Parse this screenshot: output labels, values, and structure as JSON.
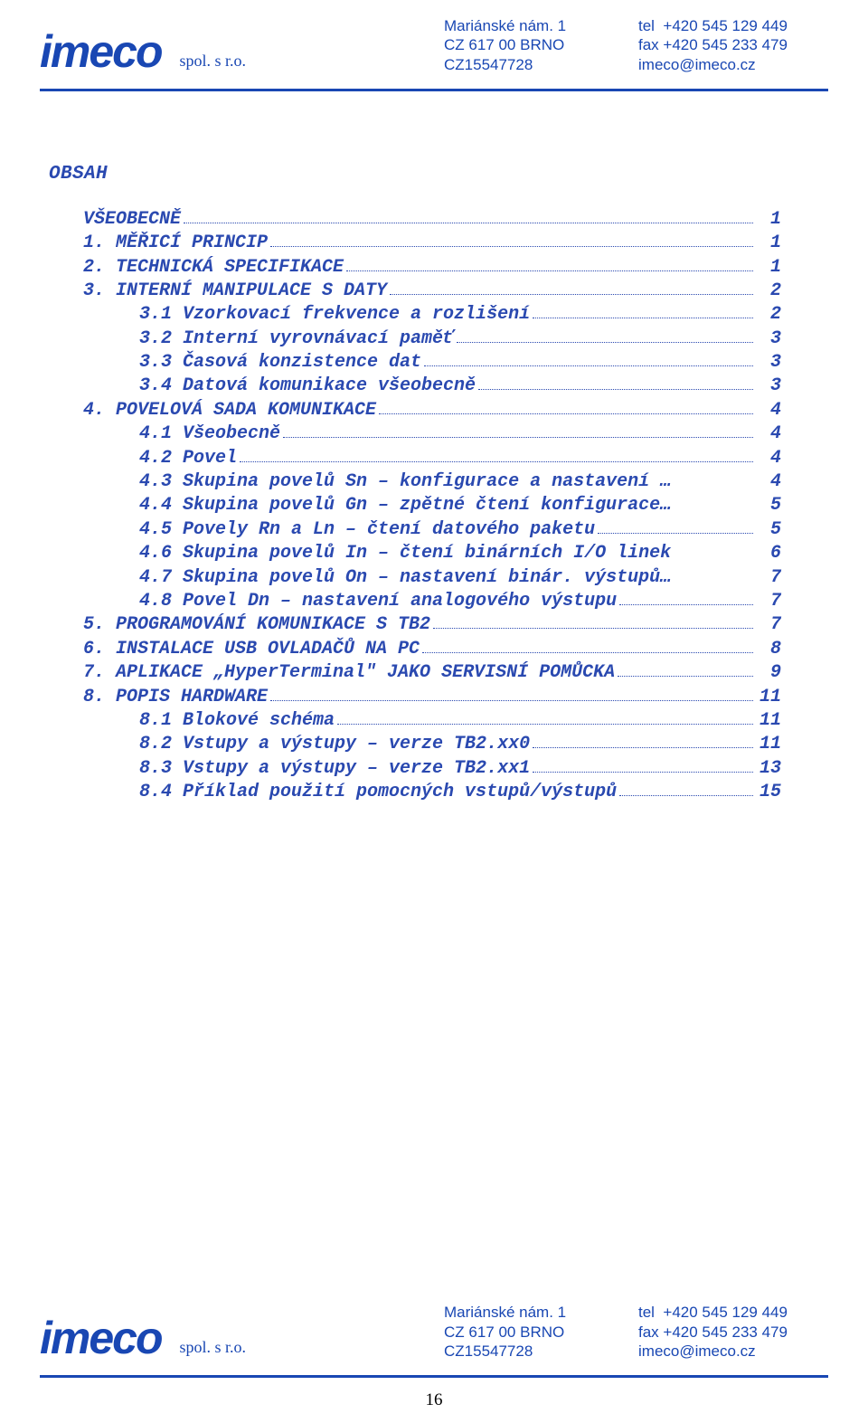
{
  "colors": {
    "brand_blue": "#1947b3",
    "toc_blue": "#2a49b0",
    "rule": "#1947b3",
    "page_bg": "#ffffff"
  },
  "typography": {
    "mono_family": "Courier New",
    "toc_fontsize_pt": 15,
    "toc_weight": "bold",
    "toc_style": "italic",
    "header_family": "Arial",
    "header_fontsize_pt": 13
  },
  "letterhead": {
    "logo_text": "imeco",
    "company_suffix": "spol. s r.o.",
    "address": {
      "line1": "Mariánské nám. 1",
      "line2": "CZ 617 00 BRNO",
      "line3": "CZ15547728"
    },
    "contacts": {
      "tel": "tel  +420 545 129 449",
      "fax": "fax +420 545 233 479",
      "mail": "imeco@imeco.cz"
    }
  },
  "title": "OBSAH",
  "toc": [
    {
      "indent": 1,
      "label": "VŠEOBECNĚ",
      "page": "1",
      "leader": true
    },
    {
      "indent": 1,
      "label": "1. MĚŘICÍ PRINCIP",
      "page": "1",
      "leader": true
    },
    {
      "indent": 1,
      "label": "2. TECHNICKÁ SPECIFIKACE",
      "page": "1",
      "leader": true
    },
    {
      "indent": 1,
      "label": "3. INTERNÍ MANIPULACE S DATY",
      "page": "2",
      "leader": true
    },
    {
      "indent": 2,
      "label": "3.1 Vzorkovací frekvence a rozlišení",
      "page": "2",
      "leader": true
    },
    {
      "indent": 2,
      "label": "3.2 Interní vyrovnávací paměť",
      "page": "3",
      "leader": true
    },
    {
      "indent": 2,
      "label": "3.3 Časová konzistence dat",
      "page": "3",
      "leader": true
    },
    {
      "indent": 2,
      "label": "3.4 Datová komunikace všeobecně",
      "page": "3",
      "leader": true
    },
    {
      "indent": 1,
      "label": "4. POVELOVÁ SADA KOMUNIKACE",
      "page": "4",
      "leader": true
    },
    {
      "indent": 2,
      "label": "4.1 Všeobecně",
      "page": "4",
      "leader": true
    },
    {
      "indent": 2,
      "label": "4.2 Povel",
      "page": "4",
      "leader": true
    },
    {
      "indent": 2,
      "label": "4.3 Skupina povelů Sn – konfigurace a nastavení …",
      "page": "4",
      "leader": false
    },
    {
      "indent": 2,
      "label": "4.4 Skupina povelů Gn – zpětné čtení konfigurace…",
      "page": "5",
      "leader": false
    },
    {
      "indent": 2,
      "label": "4.5 Povely Rn a Ln – čtení datového paketu",
      "page": "5",
      "leader": true
    },
    {
      "indent": 2,
      "label": "4.6 Skupina povelů In – čtení binárních I/O linek",
      "page": "6",
      "leader": false
    },
    {
      "indent": 2,
      "label": "4.7 Skupina povelů On – nastavení binár. výstupů…",
      "page": "7",
      "leader": false
    },
    {
      "indent": 2,
      "label": "4.8 Povel Dn – nastavení analogového výstupu",
      "page": "7",
      "leader": true
    },
    {
      "indent": 1,
      "label": "5. PROGRAMOVÁNÍ KOMUNIKACE S TB2",
      "page": "7",
      "leader": true
    },
    {
      "indent": 1,
      "label": "6. INSTALACE USB OVLADAČŮ NA PC",
      "page": "8",
      "leader": true
    },
    {
      "indent": 1,
      "label": "7. APLIKACE „HyperTerminal\" JAKO SERVISNÍ POMŮCKA",
      "page": "9",
      "leader": true
    },
    {
      "indent": 1,
      "label": "8. POPIS HARDWARE",
      "page": "11",
      "leader": true
    },
    {
      "indent": 2,
      "label": "8.1 Blokové schéma",
      "page": "11",
      "leader": true
    },
    {
      "indent": 2,
      "label": "8.2 Vstupy a výstupy – verze TB2.xx0",
      "page": "11",
      "leader": true
    },
    {
      "indent": 2,
      "label": "8.3 Vstupy a výstupy – verze TB2.xx1",
      "page": "13",
      "leader": true
    },
    {
      "indent": 2,
      "label": "8.4 Příklad použití pomocných vstupů/výstupů",
      "page": "15",
      "leader": true
    }
  ],
  "page_number": "16"
}
